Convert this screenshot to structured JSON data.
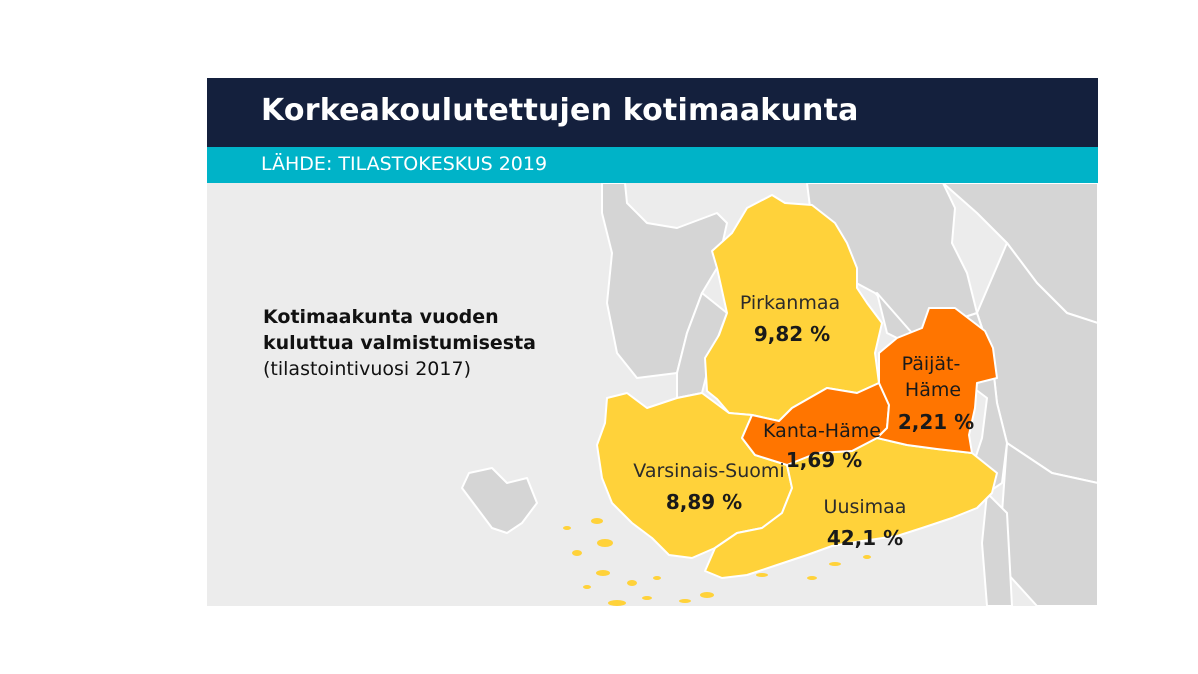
{
  "header": {
    "title": "Korkeakoulutettujen kotimaakunta",
    "source": "LÄHDE: TILASTOKESKUS 2019"
  },
  "note": {
    "line1": "Kotimaakunta vuoden",
    "line2": "kuluttua valmistumisesta",
    "line3": "(tilastointivuosi 2017)"
  },
  "colors": {
    "title_bar": "#14203d",
    "source_bar": "#00b3c8",
    "background": "#ececec",
    "other_land": "#d5d5d5",
    "low_share": "#ffd23a",
    "high_share_fill": "#ff7500"
  },
  "regions": [
    {
      "name": "Pirkanmaa",
      "value": "9,82 %",
      "color": "#ffd23a"
    },
    {
      "name_line1": "Päijät-",
      "name_line2": "Häme",
      "value": "2,21 %",
      "color": "#ff7500"
    },
    {
      "name": "Kanta-Häme",
      "value": "1,69 %",
      "color": "#ff7500"
    },
    {
      "name": "Varsinais-Suomi",
      "value": "8,89 %",
      "color": "#ffd23a"
    },
    {
      "name": "Uusimaa",
      "value": "42,1 %",
      "color": "#ffd23a"
    }
  ]
}
